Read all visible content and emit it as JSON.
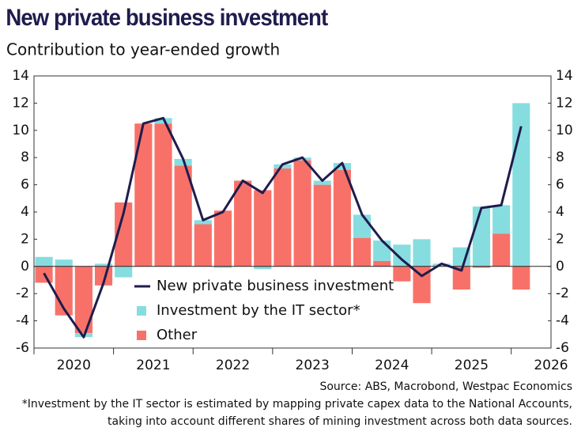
{
  "chart_data": {
    "type": "bar",
    "stacked": true,
    "title": "New private business investment",
    "subtitle": "Contribution to year-ended growth",
    "categories": [
      null,
      null,
      null,
      null,
      null,
      null,
      null,
      null,
      null,
      null,
      null,
      null,
      null,
      null,
      null,
      null,
      null,
      null,
      null,
      null,
      null,
      null,
      null,
      null,
      null
    ],
    "x_labels": [
      "2020",
      "2021",
      "2022",
      "2023",
      "2024",
      "2025",
      "2026"
    ],
    "series": [
      {
        "name": "New private business investment",
        "type": "line",
        "color": "#1f1c4d",
        "values": [
          -0.5,
          -3.1,
          -5.2,
          -1.2,
          3.9,
          10.5,
          10.9,
          7.9,
          3.4,
          4.0,
          6.3,
          5.4,
          7.5,
          8.0,
          6.3,
          7.6,
          3.8,
          1.9,
          0.5,
          -0.7,
          0.2,
          -0.3,
          4.3,
          4.5,
          10.3
        ]
      },
      {
        "name": "Investment by the IT sector*",
        "type": "bar",
        "color": "#86dde0",
        "values": [
          0.7,
          0.5,
          -0.3,
          0.2,
          -0.8,
          0,
          0.4,
          0.5,
          0.3,
          -0.1,
          0,
          -0.2,
          0.3,
          0.2,
          0.3,
          0.5,
          1.7,
          1.5,
          1.6,
          2.0,
          0.2,
          1.4,
          4.4,
          2.1,
          12.0
        ]
      },
      {
        "name": "Other",
        "type": "bar",
        "color": "#f87168",
        "values": [
          -1.2,
          -3.6,
          -4.9,
          -1.4,
          4.7,
          10.5,
          10.5,
          7.4,
          3.1,
          4.1,
          6.3,
          5.6,
          7.2,
          7.8,
          6.0,
          7.1,
          2.1,
          0.4,
          -1.1,
          -2.7,
          0,
          -1.7,
          -0.1,
          2.4,
          -1.7
        ]
      }
    ],
    "ylim": [
      -6,
      14
    ],
    "yticks": [
      -6,
      -4,
      -2,
      0,
      2,
      4,
      6,
      8,
      10,
      12,
      14
    ],
    "y2lim": [
      -6,
      14
    ],
    "y2ticks": [
      -6,
      -4,
      -2,
      0,
      2,
      4,
      6,
      8,
      10,
      12,
      14
    ],
    "grid": false,
    "legend": "bottom-center",
    "source": "Source: ABS, Macrobond, Westpac Economics",
    "footnote": [
      "*Investment by the IT sector is estimated by mapping private capex data to the National Accounts,",
      "taking into account different shares of mining investment across both data sources."
    ]
  }
}
